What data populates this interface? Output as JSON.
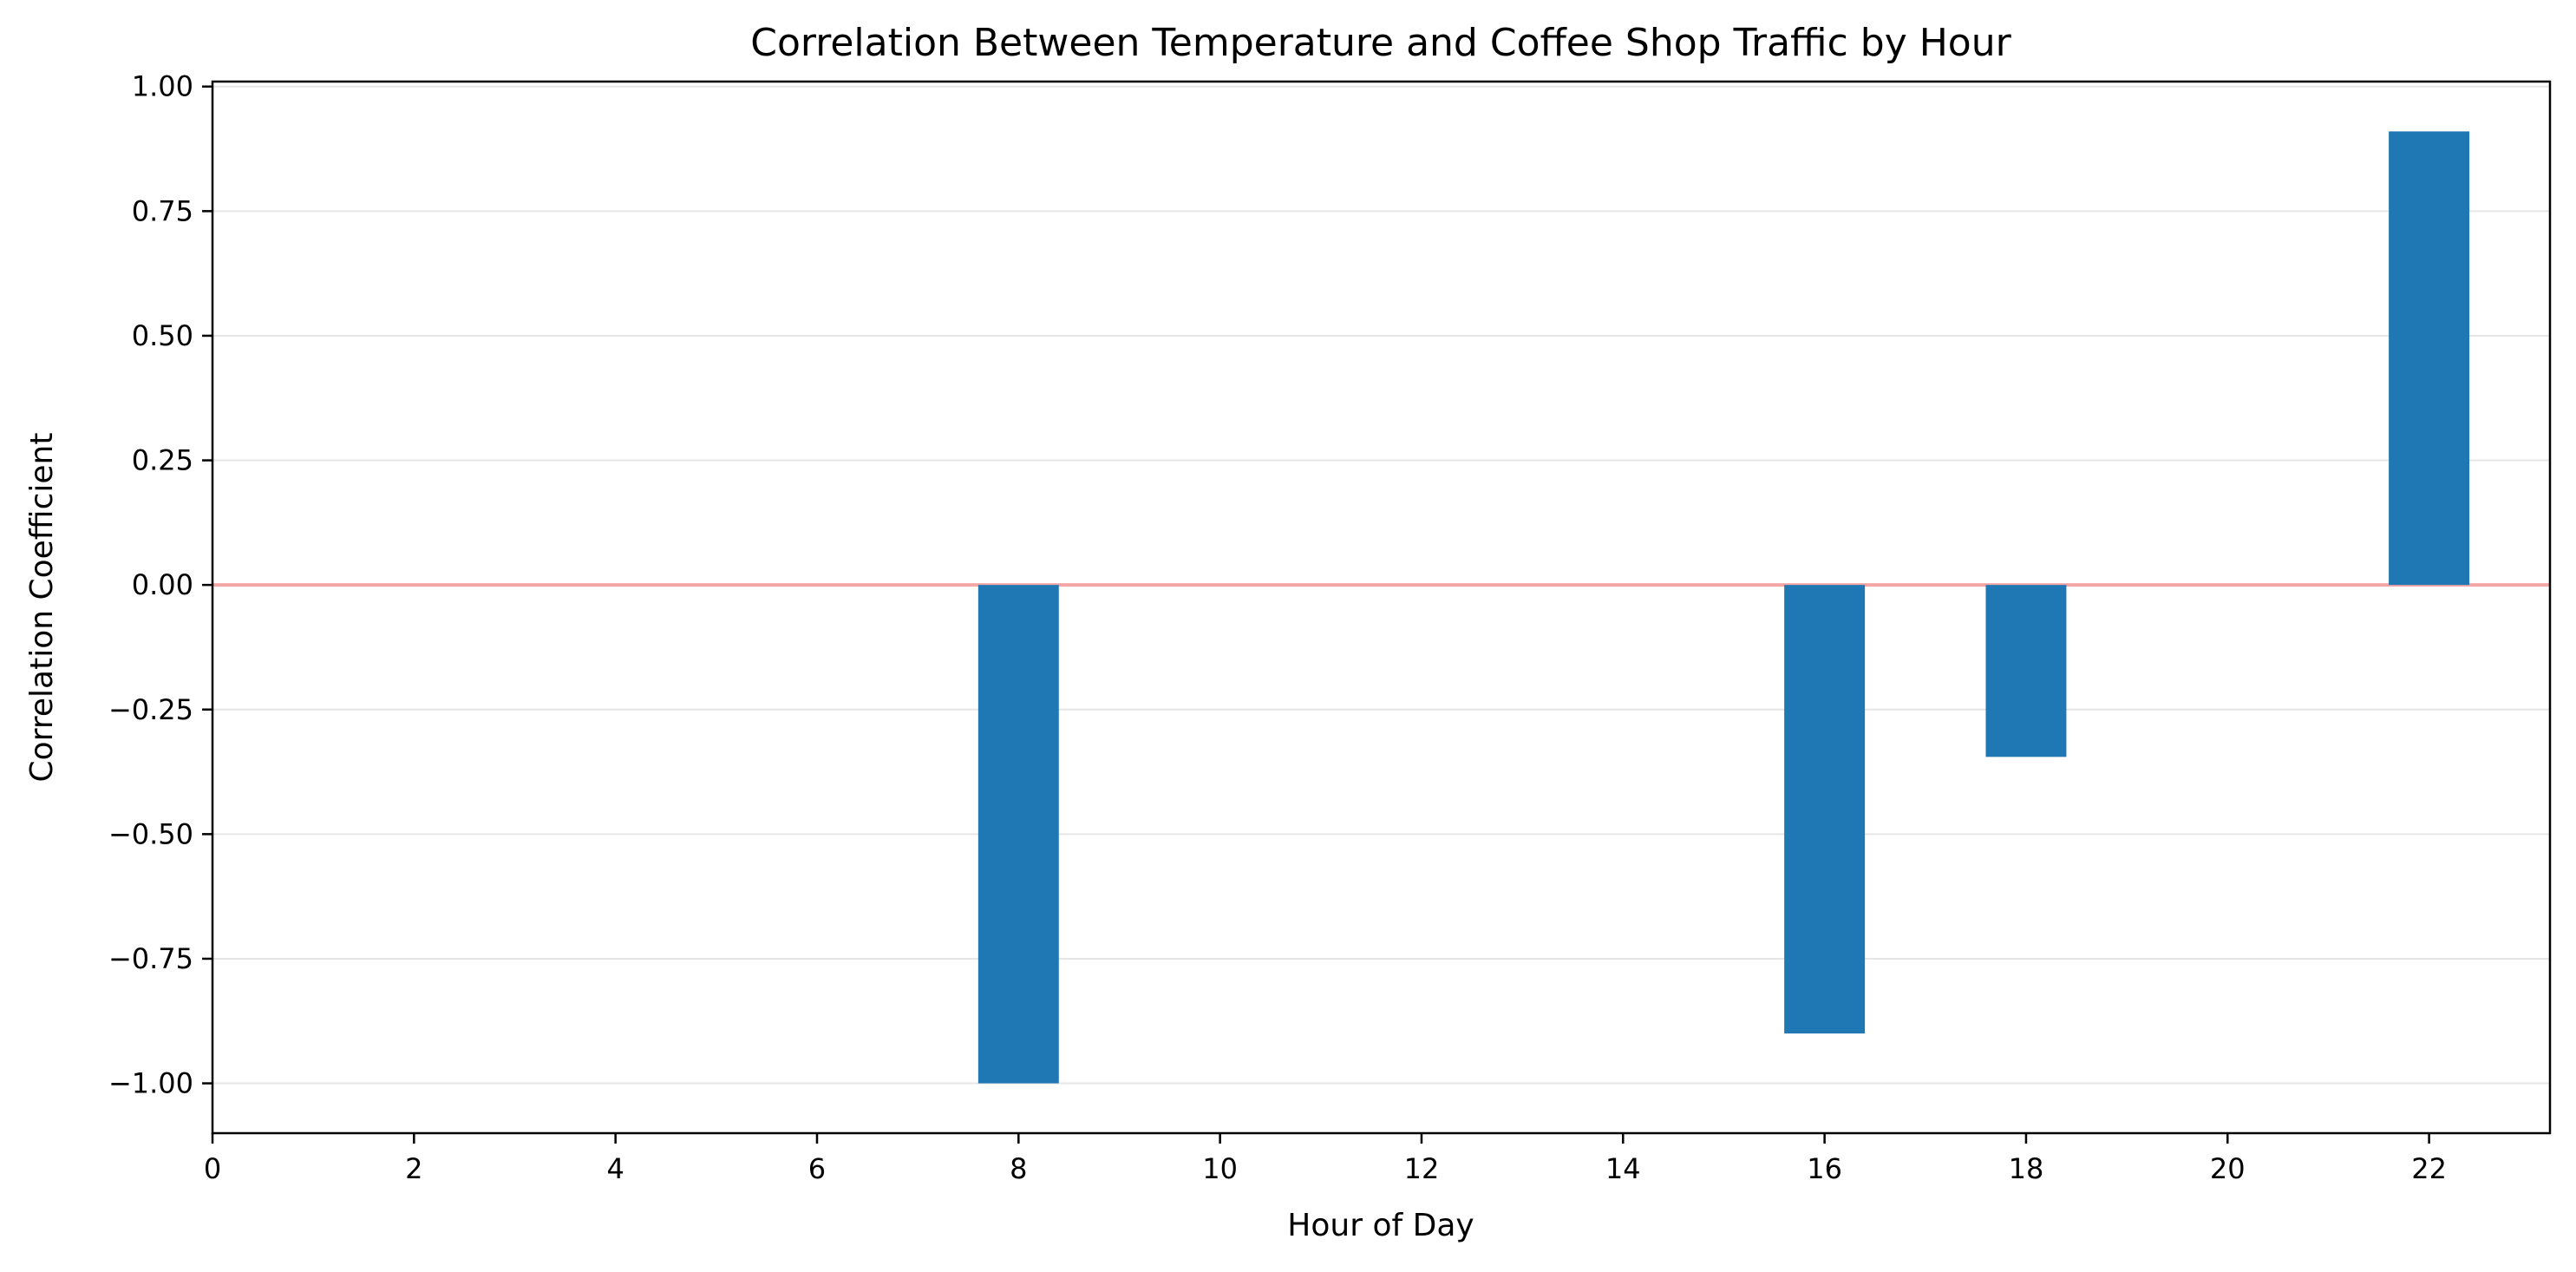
{
  "chart_data": {
    "type": "bar",
    "title": "Correlation Between Temperature and Coffee Shop Traffic by Hour",
    "xlabel": "Hour of Day",
    "ylabel": "Correlation Coefficient",
    "x": [
      8,
      16,
      18,
      22
    ],
    "values": [
      -1.0,
      -0.9,
      -0.345,
      0.91
    ],
    "xlim": [
      0,
      23.2
    ],
    "ylim": [
      -1.1,
      1.01
    ],
    "xticks": [
      0,
      2,
      4,
      6,
      8,
      10,
      12,
      14,
      16,
      18,
      20,
      22
    ],
    "xtick_labels": [
      "0",
      "2",
      "4",
      "6",
      "8",
      "10",
      "12",
      "14",
      "16",
      "18",
      "20",
      "22"
    ],
    "yticks": [
      1.0,
      0.75,
      0.5,
      0.25,
      0.0,
      -0.25,
      -0.5,
      -0.75,
      -1.0
    ],
    "ytick_labels": [
      "1.00",
      "0.75",
      "0.50",
      "0.25",
      "0.00",
      "−0.25",
      "−0.50",
      "−0.75",
      "−1.00"
    ],
    "bar_width": 0.8,
    "grid": "horizontal",
    "reference_line": 0.0,
    "colors": {
      "bar": "#1f77b4",
      "reference_line": "#f4a6a6",
      "grid": "#e6e6e6",
      "axis": "#000000"
    }
  }
}
